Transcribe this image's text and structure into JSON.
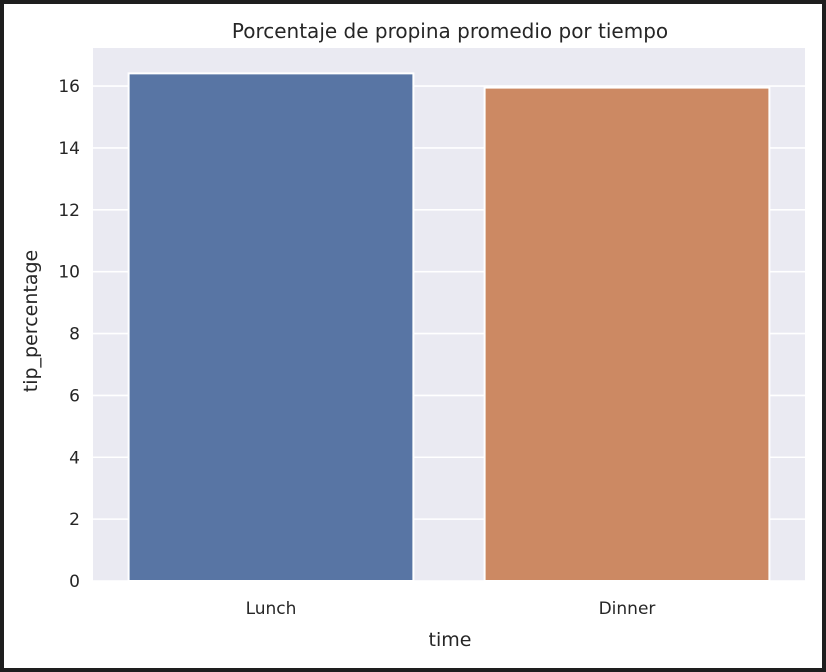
{
  "chart_data": {
    "type": "bar",
    "title": "Porcentaje de propina promedio por tiempo",
    "xlabel": "time",
    "ylabel": "tip_percentage",
    "categories": [
      "Lunch",
      "Dinner"
    ],
    "values": [
      16.41,
      15.95
    ],
    "ylim": [
      0,
      17.23
    ],
    "yticks": [
      0,
      2,
      4,
      6,
      8,
      10,
      12,
      14,
      16
    ],
    "grid": true,
    "legend": "none",
    "colors": {
      "background": "#eaeaf2",
      "bars": [
        "#5875a4",
        "#cc8963"
      ],
      "grid": "#ffffff",
      "text": "#262626"
    }
  }
}
